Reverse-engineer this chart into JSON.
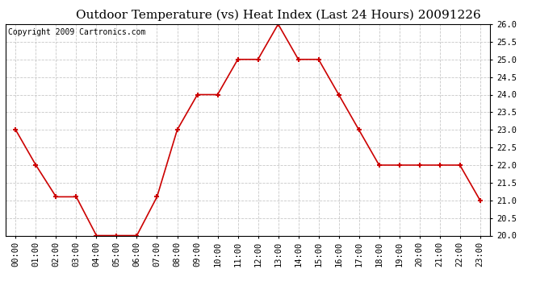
{
  "title": "Outdoor Temperature (vs) Heat Index (Last 24 Hours) 20091226",
  "copyright": "Copyright 2009 Cartronics.com",
  "hours": [
    "00:00",
    "01:00",
    "02:00",
    "03:00",
    "04:00",
    "05:00",
    "06:00",
    "07:00",
    "08:00",
    "09:00",
    "10:00",
    "11:00",
    "12:00",
    "13:00",
    "14:00",
    "15:00",
    "16:00",
    "17:00",
    "18:00",
    "19:00",
    "20:00",
    "21:00",
    "22:00",
    "23:00"
  ],
  "values": [
    23.0,
    22.0,
    21.1,
    21.1,
    20.0,
    20.0,
    20.0,
    21.1,
    23.0,
    24.0,
    24.0,
    25.0,
    25.0,
    26.0,
    25.0,
    25.0,
    24.0,
    23.0,
    22.0,
    22.0,
    22.0,
    22.0,
    22.0,
    21.0
  ],
  "line_color": "#cc0000",
  "marker": "s",
  "marker_size": 3,
  "ylim": [
    20.0,
    26.0
  ],
  "ytick_step": 0.5,
  "background_color": "#ffffff",
  "grid_color": "#c8c8c8",
  "title_fontsize": 11,
  "copyright_fontsize": 7,
  "tick_fontsize": 7.5
}
